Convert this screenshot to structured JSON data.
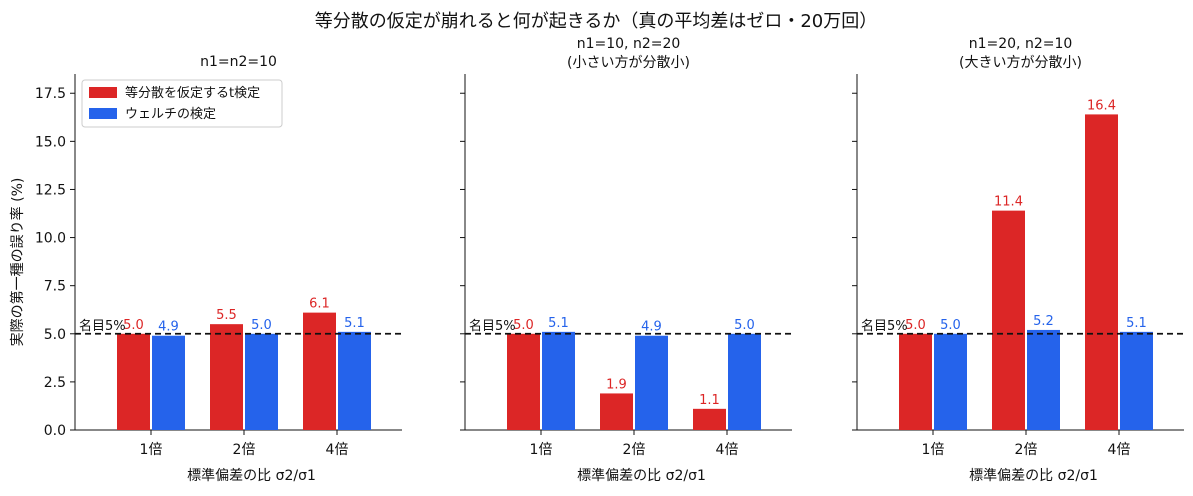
{
  "figure": {
    "suptitle": "等分散の仮定が崩れると何が起きるか（真の平均差はゼロ・20万回）",
    "ylabel": "実際の第一種の誤り率 (%)",
    "legend": [
      {
        "label": "等分散を仮定するt検定",
        "color": "#dc2626"
      },
      {
        "label": "ウェルチの検定",
        "color": "#2563eb"
      }
    ],
    "nominal_label": "名目5%"
  },
  "chart_data": [
    {
      "type": "bar",
      "title": "n1=n2=10",
      "xlabel": "標準偏差の比 σ2/σ1",
      "ylabel": "実際の第一種の誤り率 (%)",
      "categories": [
        "1倍",
        "2倍",
        "4倍"
      ],
      "series": [
        {
          "name": "等分散を仮定するt検定",
          "color": "#dc2626",
          "values": [
            5.0,
            5.5,
            6.1
          ],
          "labels": [
            "5.0",
            "5.5",
            "6.1"
          ]
        },
        {
          "name": "ウェルチの検定",
          "color": "#2563eb",
          "values": [
            4.9,
            5.0,
            5.1
          ],
          "labels": [
            "4.9",
            "5.0",
            "5.1"
          ]
        }
      ],
      "ylim": [
        0,
        18.5
      ],
      "yticks": [
        "0.0",
        "2.5",
        "5.0",
        "7.5",
        "10.0",
        "12.5",
        "15.0",
        "17.5"
      ],
      "reference_line": 5.0,
      "grid": false,
      "legend_position": "top-left"
    },
    {
      "type": "bar",
      "title": "n1=10, n2=20\n(小さい方が分散小)",
      "xlabel": "標準偏差の比 σ2/σ1",
      "categories": [
        "1倍",
        "2倍",
        "4倍"
      ],
      "series": [
        {
          "name": "等分散を仮定するt検定",
          "color": "#dc2626",
          "values": [
            5.0,
            1.9,
            1.1
          ],
          "labels": [
            "5.0",
            "1.9",
            "1.1"
          ]
        },
        {
          "name": "ウェルチの検定",
          "color": "#2563eb",
          "values": [
            5.1,
            4.9,
            5.0
          ],
          "labels": [
            "5.1",
            "4.9",
            "5.0"
          ]
        }
      ],
      "ylim": [
        0,
        18.5
      ],
      "reference_line": 5.0,
      "grid": false
    },
    {
      "type": "bar",
      "title": "n1=20, n2=10\n(大きい方が分散小)",
      "xlabel": "標準偏差の比 σ2/σ1",
      "categories": [
        "1倍",
        "2倍",
        "4倍"
      ],
      "series": [
        {
          "name": "等分散を仮定するt検定",
          "color": "#dc2626",
          "values": [
            5.0,
            11.4,
            16.4
          ],
          "labels": [
            "5.0",
            "11.4",
            "16.4"
          ]
        },
        {
          "name": "ウェルチの検定",
          "color": "#2563eb",
          "values": [
            5.0,
            5.2,
            5.1
          ],
          "labels": [
            "5.0",
            "5.2",
            "5.1"
          ]
        }
      ],
      "ylim": [
        0,
        18.5
      ],
      "reference_line": 5.0,
      "grid": false
    }
  ]
}
